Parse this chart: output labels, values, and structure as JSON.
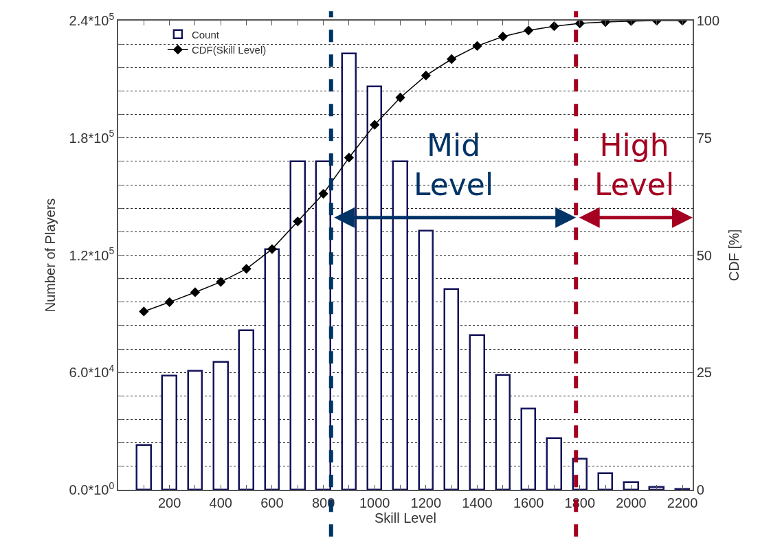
{
  "chart_data": {
    "type": "bar",
    "x": [
      100,
      200,
      300,
      400,
      500,
      600,
      700,
      800,
      900,
      1000,
      1100,
      1200,
      1300,
      1400,
      1500,
      1600,
      1700,
      1800,
      1900,
      2000,
      2100,
      2200
    ],
    "series": [
      {
        "name": "Count",
        "color": "#14145a",
        "values": [
          22700,
          58200,
          60800,
          65300,
          81500,
          122900,
          168000,
          168000,
          223000,
          206300,
          168000,
          132500,
          102600,
          79000,
          58800,
          41500,
          26500,
          15700,
          8400,
          4000,
          1400,
          500
        ]
      },
      {
        "name": "CDF(Skill Level)",
        "type": "line",
        "axis": "y2",
        "color": "#000000",
        "marker": "diamond",
        "line_style": "solid",
        "values": [
          38.0,
          40.0,
          42.1,
          44.3,
          47.1,
          51.3,
          57.2,
          63.1,
          70.8,
          77.8,
          83.6,
          88.3,
          91.8,
          94.6,
          96.6,
          97.9,
          98.8,
          99.4,
          99.7,
          99.9,
          100,
          100
        ]
      }
    ],
    "xlabel": "Skill Level",
    "ylabel": "Number of Players",
    "y2label": "CDF [%]",
    "xlim": [
      0,
      2240
    ],
    "xticks": [
      {
        "value": 100,
        "label": null
      },
      200,
      {
        "value": 300,
        "label": null
      },
      400,
      {
        "value": 500,
        "label": null
      },
      600,
      {
        "value": 700,
        "label": null
      },
      800,
      {
        "value": 900,
        "label": null
      },
      1000,
      {
        "value": 1100,
        "label": null
      },
      1200,
      {
        "value": 1300,
        "label": null
      },
      1400,
      {
        "value": 1500,
        "label": null
      },
      1600,
      {
        "value": 1700,
        "label": null
      },
      1800,
      {
        "value": 1900,
        "label": null
      },
      2000,
      {
        "value": 2100,
        "label": null
      },
      2200
    ],
    "ylim": [
      0,
      240000
    ],
    "yticks": [
      {
        "value": 0,
        "label": "0.0*10$^{0}$"
      },
      {
        "value": 12000,
        "label": null
      },
      {
        "value": 24000,
        "label": null
      },
      {
        "value": 36000,
        "label": null
      },
      {
        "value": 48000,
        "label": null
      },
      {
        "value": 60000,
        "label": "6.0*10$^{4}$"
      },
      {
        "value": 72000,
        "label": null
      },
      {
        "value": 84000,
        "label": null
      },
      {
        "value": 96000,
        "label": null
      },
      {
        "value": 108000,
        "label": null
      },
      {
        "value": 120000,
        "label": "1.2*10$^{5}$"
      },
      {
        "value": 132000,
        "label": null
      },
      {
        "value": 144000,
        "label": null
      },
      {
        "value": 156000,
        "label": null
      },
      {
        "value": 168000,
        "label": null
      },
      {
        "value": 180000,
        "label": "1.8*10$^{5}$"
      },
      {
        "value": 192000,
        "label": null
      },
      {
        "value": 204000,
        "label": null
      },
      {
        "value": 216000,
        "label": null
      },
      {
        "value": 228000,
        "label": null
      },
      {
        "value": 240000,
        "label": "2.4*10$^{5}$"
      }
    ],
    "y2lim": [
      0,
      100
    ],
    "y2ticks": [
      0,
      25,
      50,
      75,
      100
    ],
    "grid": "y",
    "legend": "top left",
    "ref_lines": [
      {
        "axis": "x",
        "value": 830,
        "label": "Mid\nLevel",
        "color": "#003366",
        "line_style": "dashed"
      },
      {
        "axis": "x",
        "value": 1785,
        "label": "High\nLevel",
        "color": "#a50021",
        "line_style": "dashed"
      }
    ]
  }
}
